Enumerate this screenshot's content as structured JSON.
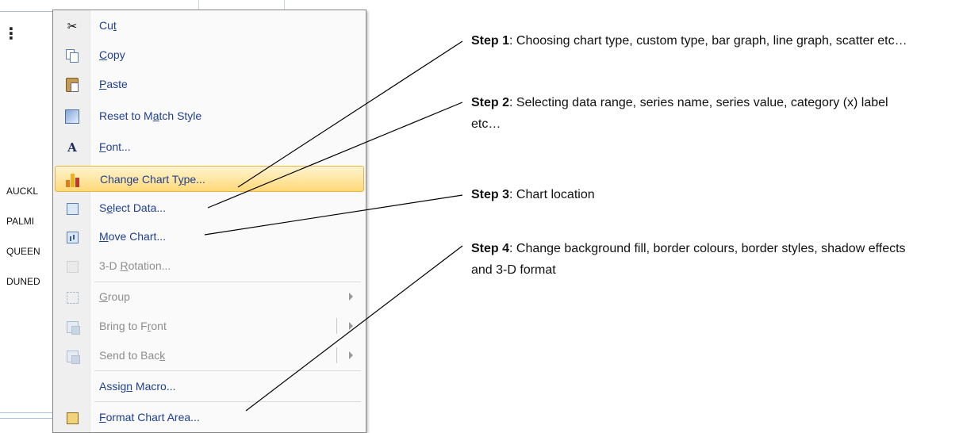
{
  "sheet": {
    "rows": [
      "AUCKL",
      "PALMI",
      "QUEEN",
      "DUNED"
    ]
  },
  "menu": {
    "items": [
      {
        "label_pre": "Cu",
        "label_key": "t",
        "label_post": "",
        "icon": "scissors-icon",
        "state": "enabled"
      },
      {
        "label_pre": "",
        "label_key": "C",
        "label_post": "opy",
        "icon": "copy-icon",
        "state": "enabled"
      },
      {
        "label_pre": "",
        "label_key": "P",
        "label_post": "aste",
        "icon": "paste-icon",
        "state": "enabled"
      },
      {
        "label_pre": "Reset to M",
        "label_key": "a",
        "label_post": "tch Style",
        "icon": "reset-style-icon",
        "state": "enabled"
      },
      {
        "label_pre": "",
        "label_key": "F",
        "label_post": "ont...",
        "icon": "font-icon",
        "state": "enabled"
      },
      {
        "label_pre": "Change Chart T",
        "label_key": "y",
        "label_post": "pe...",
        "icon": "chart-type-icon",
        "state": "highlighted"
      },
      {
        "label_pre": "S",
        "label_key": "e",
        "label_post": "lect Data...",
        "icon": "select-data-icon",
        "state": "enabled"
      },
      {
        "label_pre": "",
        "label_key": "M",
        "label_post": "ove Chart...",
        "icon": "move-chart-icon",
        "state": "enabled"
      },
      {
        "label_pre": "3-D ",
        "label_key": "R",
        "label_post": "otation...",
        "icon": "rotation-3d-icon",
        "state": "disabled"
      },
      {
        "label_pre": "",
        "label_key": "G",
        "label_post": "roup",
        "icon": "group-icon",
        "state": "disabled",
        "submenu": true
      },
      {
        "label_pre": "Bring to F",
        "label_key": "r",
        "label_post": "ont",
        "icon": "bring-to-front-icon",
        "state": "disabled",
        "submenu": true
      },
      {
        "label_pre": "Send to Bac",
        "label_key": "k",
        "label_post": "",
        "icon": "send-to-back-icon",
        "state": "disabled",
        "submenu": true
      },
      {
        "label_pre": "Assig",
        "label_key": "n",
        "label_post": " Macro...",
        "icon": "",
        "state": "enabled"
      },
      {
        "label_pre": "",
        "label_key": "F",
        "label_post": "ormat Chart Area...",
        "icon": "format-chart-area-icon",
        "state": "enabled"
      }
    ]
  },
  "steps": [
    {
      "title": "Step 1",
      "text": ": Choosing chart type, custom type, bar graph, line graph, scatter etc…"
    },
    {
      "title": "Step 2",
      "text": ": Selecting data range, series name, series value, category (x) label etc…"
    },
    {
      "title": "Step 3",
      "text": ": Chart location"
    },
    {
      "title": "Step 4",
      "text": ": Change background fill, border colours, border styles, shadow effects and 3-D format"
    }
  ],
  "colors": {
    "menu_text": "#1f3f8f",
    "disabled_text": "#8d8d8d",
    "highlight_border": "#e8b545"
  }
}
